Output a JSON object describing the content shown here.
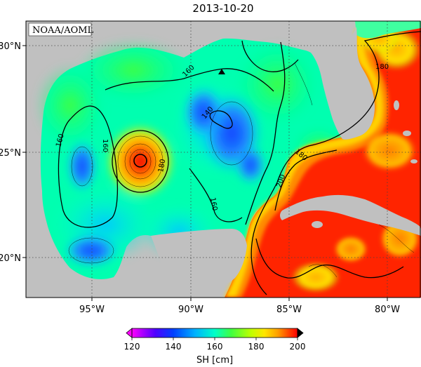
{
  "title": "2013-10-20",
  "credit": "NOAA/AOML",
  "chart_data": {
    "type": "heatmap",
    "title": "2013-10-20",
    "variable": "SH",
    "units": "cm",
    "colorbar_label": "SH [cm]",
    "colorbar_ticks": [
      "120",
      "140",
      "160",
      "180",
      "200"
    ],
    "colorbar_range": [
      120,
      200
    ],
    "lon_range": [
      -98,
      -78
    ],
    "lat_range": [
      18,
      31
    ],
    "lon_ticks": [
      "95°W",
      "90°W",
      "85°W",
      "80°W"
    ],
    "lat_ticks": [
      "20°N",
      "25°N",
      "30°N"
    ],
    "contour_labels": [
      "160",
      "160",
      "160",
      "160",
      "140",
      "180",
      "180",
      "180",
      "200"
    ],
    "colors": {
      "land": "#c0c0c0",
      "low": "#1f5aff",
      "mid": "#00ffa8",
      "high": "#ff2a00"
    }
  }
}
